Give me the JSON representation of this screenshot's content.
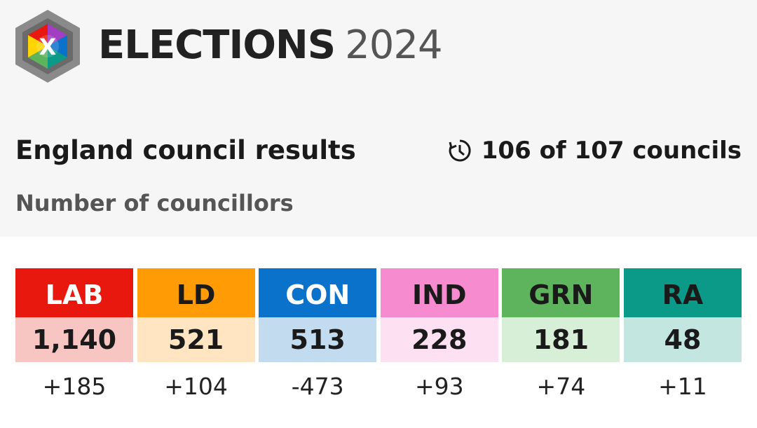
{
  "header": {
    "title": "ELECTIONS",
    "year": "2024",
    "logo_mark": "X"
  },
  "subtitle": "England council results",
  "progress": "106 of 107 councils",
  "unit": "Number of councillors",
  "parties": [
    {
      "abbr": "LAB",
      "seats": "1,140",
      "change": "+185",
      "color": "#e8180f",
      "light": "#f8c6c2",
      "text_color": "#ffffff"
    },
    {
      "abbr": "LD",
      "seats": "521",
      "change": "+104",
      "color": "#ff9b05",
      "light": "#ffe5c2",
      "text_color": "#1a1a1a"
    },
    {
      "abbr": "CON",
      "seats": "513",
      "change": "-473",
      "color": "#0b72cc",
      "light": "#c3dbef",
      "text_color": "#ffffff"
    },
    {
      "abbr": "IND",
      "seats": "228",
      "change": "+93",
      "color": "#f68bcf",
      "light": "#fde1f2",
      "text_color": "#1a1a1a"
    },
    {
      "abbr": "GRN",
      "seats": "181",
      "change": "+74",
      "color": "#5db45c",
      "light": "#d8efd7",
      "text_color": "#1a1a1a"
    },
    {
      "abbr": "RA",
      "seats": "48",
      "change": "+11",
      "color": "#0c9a88",
      "light": "#c3e6e1",
      "text_color": "#1a1a1a"
    }
  ]
}
